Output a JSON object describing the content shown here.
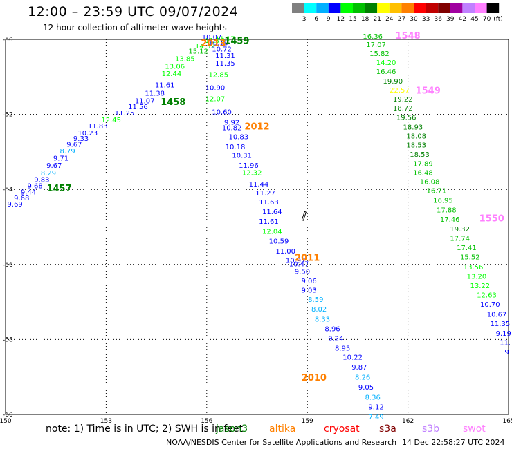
{
  "header": {
    "title": "12:00 – 23:59 UTC 09/07/2024",
    "subtitle": "12 hour collection of altimeter wave heights"
  },
  "colorbar": {
    "unit": "(ft)",
    "ticks": [
      "3",
      "6",
      "9",
      "12",
      "15",
      "18",
      "21",
      "24",
      "27",
      "30",
      "33",
      "36",
      "39",
      "42",
      "45",
      "70"
    ],
    "colors": [
      "#808080",
      "#00ffff",
      "#00b0ff",
      "#0000ff",
      "#00ff00",
      "#00c000",
      "#008000",
      "#ffff00",
      "#ffc000",
      "#ff8000",
      "#ff0000",
      "#c00000",
      "#800000",
      "#a000a0",
      "#c080ff",
      "#ff80ff",
      "#000000"
    ]
  },
  "footer": {
    "note": "note: 1) Time is in UTC; 2) SWH is in feet",
    "agency": "NOAA/NESDIS Center for Satellite Applications and Research",
    "timestamp": "14 Dec 22:58:27 UTC 2024",
    "sources": [
      {
        "name": "jason3",
        "color": "#008000"
      },
      {
        "name": "altika",
        "color": "#ff8000"
      },
      {
        "name": "cryosat",
        "color": "#ff0000"
      },
      {
        "name": "s3a",
        "color": "#800000"
      },
      {
        "name": "s3b",
        "color": "#c080ff"
      },
      {
        "name": "swot",
        "color": "#ff80ff"
      }
    ]
  },
  "chart_data": {
    "type": "scatter",
    "xlim": [
      150,
      165
    ],
    "ylim": [
      -60,
      -50
    ],
    "xticks": [
      "150",
      "153",
      "156",
      "159",
      "162",
      "165"
    ],
    "yticks": [
      "-50",
      "-52",
      "-54",
      "-56",
      "-58",
      "-60"
    ],
    "grid": true,
    "ship_marker": {
      "x": 158.9,
      "y": -54.7
    },
    "pass_labels": [
      {
        "text": "1459",
        "x": 156.9,
        "y": -50.12,
        "color": "#008000"
      },
      {
        "text": "2013",
        "x": 156.2,
        "y": -50.18,
        "color": "#ff8000"
      },
      {
        "text": "1458",
        "x": 155.0,
        "y": -51.75,
        "color": "#008000"
      },
      {
        "text": "2012",
        "x": 157.5,
        "y": -52.4,
        "color": "#ff8000"
      },
      {
        "text": "1457",
        "x": 151.6,
        "y": -54.05,
        "color": "#008000"
      },
      {
        "text": "1548",
        "x": 162.0,
        "y": -49.98,
        "color": "#ff80ff"
      },
      {
        "text": "1549",
        "x": 162.6,
        "y": -51.45,
        "color": "#ff80ff"
      },
      {
        "text": "1550",
        "x": 164.5,
        "y": -54.85,
        "color": "#ff80ff"
      },
      {
        "text": "2011",
        "x": 159.0,
        "y": -55.9,
        "color": "#ff8000"
      },
      {
        "text": "2010",
        "x": 159.2,
        "y": -59.1,
        "color": "#ff8000"
      }
    ],
    "points": [
      {
        "x": 150.28,
        "y": -54.46,
        "v": "9.69",
        "c": "#0000ff"
      },
      {
        "x": 150.48,
        "y": -54.29,
        "v": "9.68",
        "c": "#0000ff"
      },
      {
        "x": 150.68,
        "y": -54.13,
        "v": "9.44",
        "c": "#0000ff"
      },
      {
        "x": 150.88,
        "y": -53.97,
        "v": "9.68",
        "c": "#0000ff"
      },
      {
        "x": 151.08,
        "y": -53.8,
        "v": "9.83",
        "c": "#0000ff"
      },
      {
        "x": 151.28,
        "y": -53.63,
        "v": "8.29",
        "c": "#00b0ff"
      },
      {
        "x": 151.45,
        "y": -53.43,
        "v": "9.67",
        "c": "#0000ff"
      },
      {
        "x": 151.65,
        "y": -53.23,
        "v": "9.71",
        "c": "#0000ff"
      },
      {
        "x": 151.85,
        "y": -53.04,
        "v": "8.79",
        "c": "#00b0ff"
      },
      {
        "x": 152.05,
        "y": -52.86,
        "v": "9.67",
        "c": "#0000ff"
      },
      {
        "x": 152.25,
        "y": -52.71,
        "v": "9.33",
        "c": "#0000ff"
      },
      {
        "x": 152.45,
        "y": -52.56,
        "v": "10.23",
        "c": "#0000ff"
      },
      {
        "x": 152.75,
        "y": -52.38,
        "v": "11.83",
        "c": "#0000ff"
      },
      {
        "x": 153.15,
        "y": -52.21,
        "v": "12.45",
        "c": "#00ff00"
      },
      {
        "x": 153.55,
        "y": -52.03,
        "v": "11.25",
        "c": "#0000ff"
      },
      {
        "x": 153.95,
        "y": -51.86,
        "v": "11.56",
        "c": "#0000ff"
      },
      {
        "x": 154.15,
        "y": -51.7,
        "v": "11.07",
        "c": "#0000ff"
      },
      {
        "x": 154.45,
        "y": -51.5,
        "v": "11.38",
        "c": "#0000ff"
      },
      {
        "x": 154.75,
        "y": -51.28,
        "v": "11.61",
        "c": "#0000ff"
      },
      {
        "x": 154.95,
        "y": -50.98,
        "v": "12.44",
        "c": "#00ff00"
      },
      {
        "x": 155.05,
        "y": -50.78,
        "v": "13.06",
        "c": "#00ff00"
      },
      {
        "x": 155.35,
        "y": -50.58,
        "v": "13.85",
        "c": "#00ff00"
      },
      {
        "x": 155.75,
        "y": -50.38,
        "v": "15.12",
        "c": "#00c000"
      },
      {
        "x": 155.95,
        "y": -50.24,
        "v": "14.32",
        "c": "#00ff00"
      },
      {
        "x": 156.25,
        "y": -50.09,
        "v": "11.70",
        "c": "#00ff00"
      },
      {
        "x": 156.55,
        "y": -50.05,
        "v": "11.17",
        "c": "#00ff00"
      },
      {
        "x": 156.15,
        "y": -50.0,
        "v": "10.07",
        "c": "#0000ff"
      },
      {
        "x": 156.35,
        "y": -50.16,
        "v": "10.19",
        "c": "#0000ff"
      },
      {
        "x": 156.45,
        "y": -50.32,
        "v": "10.72",
        "c": "#0000ff"
      },
      {
        "x": 156.55,
        "y": -50.5,
        "v": "11.31",
        "c": "#0000ff"
      },
      {
        "x": 156.55,
        "y": -50.7,
        "v": "11.35",
        "c": "#0000ff"
      },
      {
        "x": 156.35,
        "y": -51.0,
        "v": "12.85",
        "c": "#00ff00"
      },
      {
        "x": 156.25,
        "y": -51.35,
        "v": "10.90",
        "c": "#0000ff"
      },
      {
        "x": 156.25,
        "y": -51.65,
        "v": "12.07",
        "c": "#00ff00"
      },
      {
        "x": 156.45,
        "y": -52.0,
        "v": "10.60",
        "c": "#0000ff"
      },
      {
        "x": 156.75,
        "y": -52.27,
        "v": "9.92",
        "c": "#0000ff"
      },
      {
        "x": 156.75,
        "y": -52.42,
        "v": "10.82",
        "c": "#0000ff"
      },
      {
        "x": 156.95,
        "y": -52.66,
        "v": "10.83",
        "c": "#0000ff"
      },
      {
        "x": 156.85,
        "y": -52.93,
        "v": "10.18",
        "c": "#0000ff"
      },
      {
        "x": 157.05,
        "y": -53.16,
        "v": "10.31",
        "c": "#0000ff"
      },
      {
        "x": 157.25,
        "y": -53.43,
        "v": "11.96",
        "c": "#0000ff"
      },
      {
        "x": 157.35,
        "y": -53.62,
        "v": "12.32",
        "c": "#00ff00"
      },
      {
        "x": 157.55,
        "y": -53.92,
        "v": "11.44",
        "c": "#0000ff"
      },
      {
        "x": 157.75,
        "y": -54.16,
        "v": "11.27",
        "c": "#0000ff"
      },
      {
        "x": 157.85,
        "y": -54.4,
        "v": "11.63",
        "c": "#0000ff"
      },
      {
        "x": 157.95,
        "y": -54.66,
        "v": "11.64",
        "c": "#0000ff"
      },
      {
        "x": 157.85,
        "y": -54.92,
        "v": "11.61",
        "c": "#0000ff"
      },
      {
        "x": 157.95,
        "y": -55.18,
        "v": "12.04",
        "c": "#00ff00"
      },
      {
        "x": 158.15,
        "y": -55.44,
        "v": "10.59",
        "c": "#0000ff"
      },
      {
        "x": 158.35,
        "y": -55.71,
        "v": "11.00",
        "c": "#0000ff"
      },
      {
        "x": 158.65,
        "y": -55.96,
        "v": "10.97",
        "c": "#0000ff"
      },
      {
        "x": 158.75,
        "y": -56.05,
        "v": "10.47",
        "c": "#0000ff"
      },
      {
        "x": 158.85,
        "y": -56.25,
        "v": "9.50",
        "c": "#0000ff"
      },
      {
        "x": 159.05,
        "y": -56.5,
        "v": "9.06",
        "c": "#0000ff"
      },
      {
        "x": 159.05,
        "y": -56.75,
        "v": "9.03",
        "c": "#0000ff"
      },
      {
        "x": 159.25,
        "y": -57.0,
        "v": "8.59",
        "c": "#00b0ff"
      },
      {
        "x": 159.35,
        "y": -57.26,
        "v": "8.02",
        "c": "#00b0ff"
      },
      {
        "x": 159.45,
        "y": -57.52,
        "v": "8.33",
        "c": "#00b0ff"
      },
      {
        "x": 159.75,
        "y": -57.78,
        "v": "8.96",
        "c": "#0000ff"
      },
      {
        "x": 159.85,
        "y": -58.04,
        "v": "9.24",
        "c": "#0000ff"
      },
      {
        "x": 160.05,
        "y": -58.3,
        "v": "8.95",
        "c": "#0000ff"
      },
      {
        "x": 160.35,
        "y": -58.54,
        "v": "10.22",
        "c": "#0000ff"
      },
      {
        "x": 160.55,
        "y": -58.8,
        "v": "9.87",
        "c": "#0000ff"
      },
      {
        "x": 160.65,
        "y": -59.07,
        "v": "8.26",
        "c": "#00b0ff"
      },
      {
        "x": 160.75,
        "y": -59.34,
        "v": "9.05",
        "c": "#0000ff"
      },
      {
        "x": 160.95,
        "y": -59.6,
        "v": "8.36",
        "c": "#00b0ff"
      },
      {
        "x": 161.05,
        "y": -59.86,
        "v": "9.12",
        "c": "#0000ff"
      },
      {
        "x": 161.05,
        "y": -60.13,
        "v": "7.49",
        "c": "#00b0ff"
      },
      {
        "x": 160.95,
        "y": -49.98,
        "v": "16.36",
        "c": "#00c000"
      },
      {
        "x": 161.05,
        "y": -50.2,
        "v": "17.07",
        "c": "#00c000"
      },
      {
        "x": 161.15,
        "y": -50.44,
        "v": "15.82",
        "c": "#00c000"
      },
      {
        "x": 161.35,
        "y": -50.68,
        "v": "14.20",
        "c": "#00ff00"
      },
      {
        "x": 161.35,
        "y": -50.92,
        "v": "16.46",
        "c": "#00c000"
      },
      {
        "x": 161.55,
        "y": -51.18,
        "v": "19.90",
        "c": "#008000"
      },
      {
        "x": 161.75,
        "y": -51.42,
        "v": "22.57",
        "c": "#ffff00"
      },
      {
        "x": 161.85,
        "y": -51.66,
        "v": "19.22",
        "c": "#008000"
      },
      {
        "x": 161.85,
        "y": -51.9,
        "v": "18.72",
        "c": "#008000"
      },
      {
        "x": 161.95,
        "y": -52.15,
        "v": "19.56",
        "c": "#008000"
      },
      {
        "x": 162.15,
        "y": -52.4,
        "v": "18.93",
        "c": "#008000"
      },
      {
        "x": 162.25,
        "y": -52.64,
        "v": "18.08",
        "c": "#008000"
      },
      {
        "x": 162.25,
        "y": -52.88,
        "v": "18.53",
        "c": "#008000"
      },
      {
        "x": 162.35,
        "y": -53.13,
        "v": "18.53",
        "c": "#008000"
      },
      {
        "x": 162.45,
        "y": -53.38,
        "v": "17.89",
        "c": "#00c000"
      },
      {
        "x": 162.45,
        "y": -53.62,
        "v": "16.48",
        "c": "#00c000"
      },
      {
        "x": 162.65,
        "y": -53.86,
        "v": "16.08",
        "c": "#00c000"
      },
      {
        "x": 162.85,
        "y": -54.1,
        "v": "16.71",
        "c": "#00c000"
      },
      {
        "x": 163.05,
        "y": -54.36,
        "v": "16.95",
        "c": "#00c000"
      },
      {
        "x": 163.15,
        "y": -54.61,
        "v": "17.88",
        "c": "#00c000"
      },
      {
        "x": 163.25,
        "y": -54.86,
        "v": "17.46",
        "c": "#00c000"
      },
      {
        "x": 163.55,
        "y": -55.12,
        "v": "19.32",
        "c": "#008000"
      },
      {
        "x": 163.55,
        "y": -55.37,
        "v": "17.74",
        "c": "#00c000"
      },
      {
        "x": 163.75,
        "y": -55.62,
        "v": "17.41",
        "c": "#00c000"
      },
      {
        "x": 163.85,
        "y": -55.87,
        "v": "15.52",
        "c": "#00c000"
      },
      {
        "x": 163.95,
        "y": -56.13,
        "v": "13.56",
        "c": "#00ff00"
      },
      {
        "x": 164.05,
        "y": -56.38,
        "v": "13.20",
        "c": "#00ff00"
      },
      {
        "x": 164.15,
        "y": -56.63,
        "v": "13.22",
        "c": "#00ff00"
      },
      {
        "x": 164.35,
        "y": -56.88,
        "v": "12.63",
        "c": "#00ff00"
      },
      {
        "x": 164.45,
        "y": -57.13,
        "v": "10.70",
        "c": "#0000ff"
      },
      {
        "x": 164.65,
        "y": -57.39,
        "v": "10.67",
        "c": "#0000ff"
      },
      {
        "x": 164.75,
        "y": -57.64,
        "v": "11.35",
        "c": "#0000ff"
      },
      {
        "x": 164.85,
        "y": -57.9,
        "v": "9.19",
        "c": "#0000ff"
      },
      {
        "x": 164.9,
        "y": -58.15,
        "v": "11.",
        "c": "#0000ff"
      },
      {
        "x": 164.95,
        "y": -58.4,
        "v": "9",
        "c": "#0000ff"
      }
    ]
  }
}
